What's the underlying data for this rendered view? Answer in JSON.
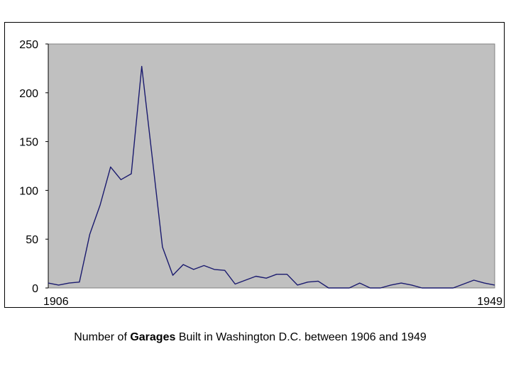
{
  "chart_data": {
    "type": "line",
    "x_start_label": "1906",
    "x_end_label": "1949",
    "xlim": [
      1906,
      1949
    ],
    "ylim": [
      0,
      250
    ],
    "yticks": [
      "0",
      "50",
      "100",
      "150",
      "200",
      "250"
    ],
    "grid": false,
    "legend": "none",
    "colors": {
      "line": "#1a1a6e",
      "plot_bg": "#c0c0c0",
      "frame": "#000000"
    },
    "x": [
      1906,
      1907,
      1908,
      1909,
      1910,
      1911,
      1912,
      1913,
      1914,
      1915,
      1916,
      1917,
      1918,
      1919,
      1920,
      1921,
      1922,
      1923,
      1924,
      1925,
      1926,
      1927,
      1928,
      1929,
      1930,
      1931,
      1932,
      1933,
      1934,
      1935,
      1936,
      1937,
      1938,
      1939,
      1940,
      1941,
      1942,
      1943,
      1944,
      1945,
      1946,
      1947,
      1948,
      1949
    ],
    "values": [
      5,
      3,
      5,
      6,
      55,
      85,
      124,
      111,
      117,
      227,
      135,
      42,
      13,
      24,
      19,
      23,
      19,
      18,
      4,
      8,
      12,
      10,
      14,
      14,
      3,
      6,
      7,
      0,
      0,
      0,
      5,
      0,
      0,
      3,
      5,
      3,
      0,
      0,
      0,
      0,
      4,
      8,
      5,
      3
    ]
  },
  "caption": {
    "prefix": "Number of ",
    "bold": "Garages",
    "suffix": " Built in Washington D.C. between 1906 and 1949"
  }
}
